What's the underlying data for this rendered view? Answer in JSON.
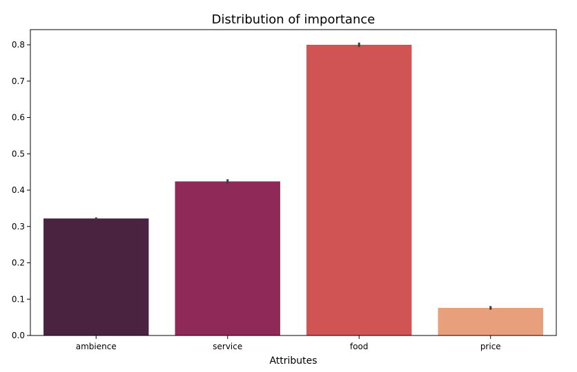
{
  "chart_data": {
    "type": "bar",
    "title": "Distribution of importance",
    "xlabel": "Attributes",
    "ylabel": "",
    "categories": [
      "ambience",
      "service",
      "food",
      "price"
    ],
    "values": [
      0.322,
      0.424,
      0.8,
      0.076
    ],
    "error": [
      0.003,
      0.006,
      0.006,
      0.005
    ],
    "colors": [
      "#4a2341",
      "#8f2a58",
      "#d15454",
      "#e8a07c"
    ],
    "ylim": [
      0,
      0.84
    ],
    "yticks": [
      "0.0",
      "0.1",
      "0.2",
      "0.3",
      "0.4",
      "0.5",
      "0.6",
      "0.7",
      "0.8"
    ],
    "grid": false,
    "legend": "none"
  }
}
